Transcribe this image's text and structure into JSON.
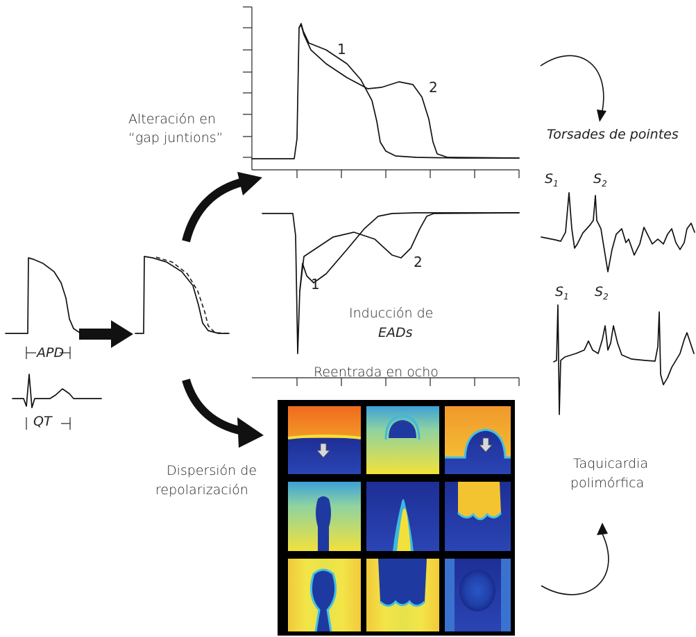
{
  "labels": {
    "gap_line1": "Alteración en",
    "gap_line2": "“gap juntions”",
    "torsades": "Torsades de pointes",
    "s1_top": "S",
    "s1_top_sub": "1",
    "s2_top": "S",
    "s2_top_sub": "2",
    "s1_bottom": "S",
    "s1_bottom_sub": "1",
    "s2_bottom": "S",
    "s2_bottom_sub": "2",
    "curve_1_top": "1",
    "curve_2_top": "2",
    "curve_1_bottom": "1",
    "curve_2_bottom": "2",
    "eads_line1": "Inducción de",
    "eads_line2": "EADs",
    "reentry": "Reentrada en ocho",
    "apd": "APD",
    "qt": "QT",
    "dispersion_line1": "Dispersión de",
    "dispersion_line2": "repolarización",
    "taquicardia_line1": "Taquicardia",
    "taquicardia_line2": "polimórfica"
  },
  "colors": {
    "ink": "#111111",
    "map_dark_blue": "#1a2a8c",
    "map_blue": "#2f5fd0",
    "map_cyan": "#37b8e0",
    "map_yellow": "#f2e13a",
    "map_orange": "#f07a22",
    "map_frame": "#000000"
  },
  "icons": {
    "curved_arrows": "curved-arrow-icon",
    "block_arrow": "right-block-arrow-icon",
    "stimulus_arrows": "down-arrow-icon"
  }
}
